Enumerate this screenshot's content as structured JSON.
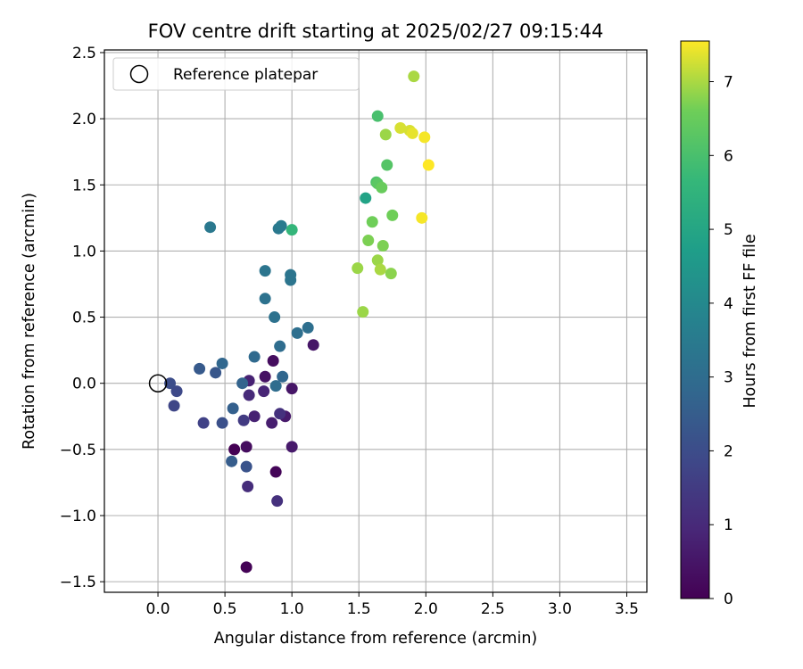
{
  "chart_data": {
    "type": "scatter",
    "title": "FOV centre drift starting at 2025/02/27 09:15:44",
    "xlabel": "Angular distance from reference (arcmin)",
    "ylabel": "Rotation from reference (arcmin)",
    "xlim": [
      -0.4,
      3.65
    ],
    "ylim": [
      -1.58,
      2.52
    ],
    "xticks": [
      "0.0",
      "0.5",
      "1.0",
      "1.5",
      "2.0",
      "2.5",
      "3.0",
      "3.5"
    ],
    "xtick_values": [
      0,
      0.5,
      1,
      1.5,
      2,
      2.5,
      3,
      3.5
    ],
    "yticks": [
      "−1.5",
      "−1.0",
      "−0.5",
      "0.0",
      "0.5",
      "1.0",
      "1.5",
      "2.0",
      "2.5"
    ],
    "ytick_values": [
      -1.5,
      -1,
      -0.5,
      0,
      0.5,
      1,
      1.5,
      2,
      2.5
    ],
    "grid": true,
    "legend": {
      "position": "top-left",
      "entries": [
        "Reference platepar"
      ]
    },
    "reference_point": {
      "x": 0.0,
      "y": 0.0
    },
    "colorbar": {
      "label": "Hours from first FF file",
      "colormap": "viridis",
      "range": [
        0,
        7.55
      ],
      "ticks": [
        "0",
        "1",
        "2",
        "3",
        "4",
        "5",
        "6",
        "7"
      ],
      "tick_values": [
        0,
        1,
        2,
        3,
        4,
        5,
        6,
        7
      ]
    },
    "points": [
      {
        "x": 0.57,
        "y": -0.5,
        "h": 0.0
      },
      {
        "x": 0.66,
        "y": -1.39,
        "h": 0.05
      },
      {
        "x": 0.88,
        "y": -0.67,
        "h": 0.1
      },
      {
        "x": 0.66,
        "y": -0.48,
        "h": 0.3
      },
      {
        "x": 0.86,
        "y": 0.17,
        "h": 0.3
      },
      {
        "x": 0.8,
        "y": 0.05,
        "h": 0.4
      },
      {
        "x": 1.16,
        "y": 0.29,
        "h": 0.5
      },
      {
        "x": 1.0,
        "y": -0.04,
        "h": 0.5
      },
      {
        "x": 1.0,
        "y": -0.48,
        "h": 0.6
      },
      {
        "x": 0.95,
        "y": -0.25,
        "h": 0.6
      },
      {
        "x": 0.85,
        "y": -0.3,
        "h": 0.7
      },
      {
        "x": 0.72,
        "y": -0.25,
        "h": 0.8
      },
      {
        "x": 0.68,
        "y": 0.02,
        "h": 0.8
      },
      {
        "x": 0.79,
        "y": -0.06,
        "h": 0.9
      },
      {
        "x": 0.68,
        "y": -0.09,
        "h": 1.0
      },
      {
        "x": 0.67,
        "y": -0.78,
        "h": 1.1
      },
      {
        "x": 0.89,
        "y": -0.89,
        "h": 1.2
      },
      {
        "x": 0.91,
        "y": -0.23,
        "h": 1.2
      },
      {
        "x": 0.64,
        "y": -0.28,
        "h": 1.5
      },
      {
        "x": 0.34,
        "y": -0.3,
        "h": 1.7
      },
      {
        "x": 0.12,
        "y": -0.17,
        "h": 1.8
      },
      {
        "x": 0.14,
        "y": -0.06,
        "h": 1.9
      },
      {
        "x": 0.09,
        "y": 0.0,
        "h": 2.0
      },
      {
        "x": 0.48,
        "y": -0.3,
        "h": 2.1
      },
      {
        "x": 0.66,
        "y": -0.63,
        "h": 2.2
      },
      {
        "x": 0.43,
        "y": 0.08,
        "h": 2.3
      },
      {
        "x": 0.31,
        "y": 0.11,
        "h": 2.4
      },
      {
        "x": 0.55,
        "y": -0.59,
        "h": 2.5
      },
      {
        "x": 0.56,
        "y": -0.19,
        "h": 2.6
      },
      {
        "x": 0.63,
        "y": 0.0,
        "h": 2.7
      },
      {
        "x": 0.48,
        "y": 0.15,
        "h": 2.8
      },
      {
        "x": 0.93,
        "y": 0.05,
        "h": 2.8
      },
      {
        "x": 0.72,
        "y": 0.2,
        "h": 2.9
      },
      {
        "x": 0.88,
        "y": -0.02,
        "h": 3.0
      },
      {
        "x": 0.91,
        "y": 0.28,
        "h": 3.0
      },
      {
        "x": 1.04,
        "y": 0.38,
        "h": 3.1
      },
      {
        "x": 1.12,
        "y": 0.42,
        "h": 3.1
      },
      {
        "x": 0.87,
        "y": 0.5,
        "h": 3.2
      },
      {
        "x": 0.8,
        "y": 0.64,
        "h": 3.2
      },
      {
        "x": 0.99,
        "y": 0.78,
        "h": 3.3
      },
      {
        "x": 0.99,
        "y": 0.82,
        "h": 3.3
      },
      {
        "x": 0.8,
        "y": 0.85,
        "h": 3.3
      },
      {
        "x": 0.39,
        "y": 1.18,
        "h": 3.4
      },
      {
        "x": 0.9,
        "y": 1.17,
        "h": 3.4
      },
      {
        "x": 0.92,
        "y": 1.19,
        "h": 3.5
      },
      {
        "x": 1.55,
        "y": 1.4,
        "h": 4.9
      },
      {
        "x": 1.0,
        "y": 1.16,
        "h": 5.6
      },
      {
        "x": 1.64,
        "y": 2.02,
        "h": 6.0
      },
      {
        "x": 1.63,
        "y": 1.52,
        "h": 6.1
      },
      {
        "x": 1.71,
        "y": 1.65,
        "h": 6.2
      },
      {
        "x": 1.64,
        "y": 1.51,
        "h": 6.3
      },
      {
        "x": 1.67,
        "y": 1.48,
        "h": 6.5
      },
      {
        "x": 1.75,
        "y": 1.27,
        "h": 6.6
      },
      {
        "x": 1.6,
        "y": 1.22,
        "h": 6.6
      },
      {
        "x": 1.57,
        "y": 1.08,
        "h": 6.7
      },
      {
        "x": 1.68,
        "y": 1.04,
        "h": 6.7
      },
      {
        "x": 1.74,
        "y": 0.83,
        "h": 6.8
      },
      {
        "x": 1.49,
        "y": 0.87,
        "h": 6.9
      },
      {
        "x": 1.64,
        "y": 0.93,
        "h": 6.9
      },
      {
        "x": 1.66,
        "y": 0.86,
        "h": 7.0
      },
      {
        "x": 1.53,
        "y": 0.54,
        "h": 6.9
      },
      {
        "x": 1.7,
        "y": 1.88,
        "h": 6.9
      },
      {
        "x": 1.91,
        "y": 2.32,
        "h": 7.0
      },
      {
        "x": 1.81,
        "y": 1.93,
        "h": 7.3
      },
      {
        "x": 1.88,
        "y": 1.91,
        "h": 7.3
      },
      {
        "x": 1.9,
        "y": 1.89,
        "h": 7.4
      },
      {
        "x": 1.99,
        "y": 1.86,
        "h": 7.5
      },
      {
        "x": 1.97,
        "y": 1.25,
        "h": 7.5
      },
      {
        "x": 2.02,
        "y": 1.65,
        "h": 7.55
      }
    ]
  }
}
